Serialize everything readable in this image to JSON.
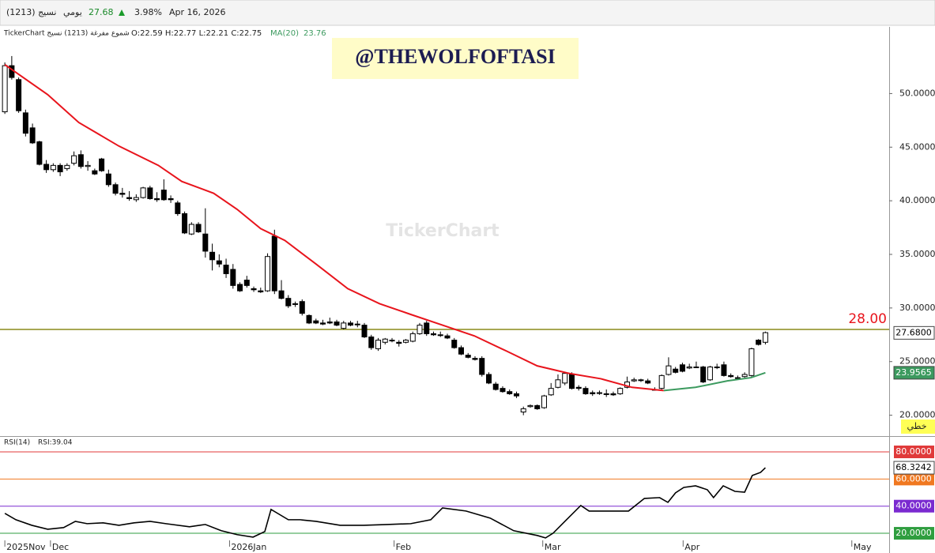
{
  "header": {
    "symbol": "نسيج (1213)",
    "period": "يومي",
    "price": 27.68,
    "change": "3.98%",
    "date": "Apr 16, 2026"
  },
  "chart_data": [
    {
      "type": "candlestick",
      "title": "TickerChart شموع مفرغة (1213) نسيج",
      "ohlc": "O:22.59 H:22.77 L:22.21 C:22.75",
      "ma_label": "MA(20)",
      "ma_value": "23.76",
      "watermark": "@THEWOLFOFTASI",
      "brand": "TickerChart",
      "line_button": "خطي",
      "xlim": [
        -0.7,
        127.9
      ],
      "ylim": [
        18.2,
        56.0
      ],
      "yticks": [
        {
          "value": 20,
          "label": "20.0000"
        },
        {
          "value": 25,
          "label": "25.0000"
        },
        {
          "value": 30,
          "label": "30.0000"
        },
        {
          "value": 35,
          "label": "35.0000"
        },
        {
          "value": 40,
          "label": "40.0000"
        },
        {
          "value": 45,
          "label": "45.0000"
        },
        {
          "value": 50,
          "label": "50.0000"
        }
      ],
      "up_color": "#ffffff",
      "down_color": "#000000",
      "candles": [
        [
          48.3,
          52.9,
          48.1,
          52.6
        ],
        [
          52.6,
          53.5,
          51.3,
          51.5
        ],
        [
          51.3,
          51.5,
          48.2,
          48.4
        ],
        [
          48.2,
          48.5,
          46.0,
          46.3
        ],
        [
          46.8,
          47.2,
          45.3,
          45.4
        ],
        [
          45.5,
          45.6,
          43.3,
          43.4
        ],
        [
          43.4,
          43.8,
          42.6,
          42.9
        ],
        [
          42.9,
          43.5,
          42.7,
          43.3
        ],
        [
          43.3,
          43.5,
          42.3,
          42.7
        ],
        [
          43.0,
          43.5,
          42.8,
          43.3
        ],
        [
          43.5,
          44.6,
          43.3,
          44.2
        ],
        [
          44.3,
          44.7,
          43.0,
          43.2
        ],
        [
          43.2,
          43.7,
          42.8,
          43.3
        ],
        [
          42.8,
          43.0,
          42.4,
          42.5
        ],
        [
          43.9,
          44.0,
          42.7,
          42.8
        ],
        [
          42.5,
          42.9,
          41.3,
          41.5
        ],
        [
          41.5,
          41.7,
          40.5,
          40.7
        ],
        [
          40.7,
          41.2,
          40.3,
          40.6
        ],
        [
          40.3,
          40.9,
          40.0,
          40.2
        ],
        [
          40.1,
          40.6,
          39.9,
          40.3
        ],
        [
          40.3,
          41.3,
          40.2,
          41.2
        ],
        [
          41.2,
          41.4,
          40.1,
          40.2
        ],
        [
          40.2,
          40.8,
          39.9,
          40.1
        ],
        [
          41.0,
          42.0,
          40.0,
          40.1
        ],
        [
          40.2,
          40.5,
          39.8,
          40.1
        ],
        [
          39.8,
          40.0,
          38.6,
          38.8
        ],
        [
          38.8,
          39.0,
          36.9,
          37.0
        ],
        [
          36.9,
          38.0,
          36.8,
          37.8
        ],
        [
          37.8,
          38.0,
          37.0,
          37.1
        ],
        [
          36.9,
          39.3,
          34.7,
          35.3
        ],
        [
          35.2,
          36.0,
          33.5,
          34.5
        ],
        [
          34.4,
          35.0,
          33.8,
          34.1
        ],
        [
          34.0,
          34.6,
          32.8,
          33.2
        ],
        [
          33.6,
          34.1,
          31.8,
          32.1
        ],
        [
          32.2,
          32.4,
          31.5,
          31.6
        ],
        [
          32.6,
          33.0,
          31.9,
          32.1
        ],
        [
          31.8,
          32.0,
          31.5,
          31.7
        ],
        [
          31.6,
          31.9,
          31.4,
          31.5
        ],
        [
          31.6,
          35.1,
          31.5,
          34.8
        ],
        [
          36.7,
          37.3,
          31.3,
          31.6
        ],
        [
          31.6,
          32.6,
          30.8,
          30.9
        ],
        [
          30.9,
          31.2,
          30.0,
          30.2
        ],
        [
          30.4,
          30.6,
          30.1,
          30.4
        ],
        [
          30.6,
          30.8,
          29.3,
          29.5
        ],
        [
          29.3,
          29.4,
          28.5,
          28.6
        ],
        [
          28.8,
          29.0,
          28.5,
          28.6
        ],
        [
          28.6,
          28.9,
          28.4,
          28.5
        ],
        [
          28.7,
          29.1,
          28.5,
          28.6
        ],
        [
          28.7,
          28.9,
          28.3,
          28.4
        ],
        [
          28.1,
          28.8,
          28.0,
          28.6
        ],
        [
          28.6,
          28.8,
          28.3,
          28.4
        ],
        [
          28.5,
          28.8,
          28.2,
          28.5
        ],
        [
          28.4,
          28.6,
          27.2,
          27.3
        ],
        [
          27.3,
          27.5,
          26.1,
          26.3
        ],
        [
          26.2,
          27.2,
          26.0,
          27.0
        ],
        [
          26.8,
          27.2,
          26.6,
          27.1
        ],
        [
          27.0,
          27.2,
          26.8,
          27.0
        ],
        [
          26.8,
          27.0,
          26.4,
          26.7
        ],
        [
          26.8,
          27.1,
          26.7,
          27.0
        ],
        [
          26.9,
          27.8,
          26.8,
          27.6
        ],
        [
          27.6,
          28.6,
          27.5,
          28.4
        ],
        [
          28.6,
          28.8,
          27.4,
          27.6
        ],
        [
          27.6,
          27.8,
          27.4,
          27.5
        ],
        [
          27.5,
          27.8,
          27.3,
          27.5
        ],
        [
          27.4,
          27.6,
          27.1,
          27.2
        ],
        [
          27.0,
          27.2,
          26.2,
          26.3
        ],
        [
          26.3,
          26.5,
          25.6,
          25.7
        ],
        [
          25.6,
          25.8,
          25.3,
          25.4
        ],
        [
          25.3,
          25.5,
          25.1,
          25.2
        ],
        [
          25.3,
          25.5,
          23.6,
          23.8
        ],
        [
          23.8,
          24.0,
          22.9,
          23.0
        ],
        [
          22.9,
          23.1,
          22.3,
          22.4
        ],
        [
          22.5,
          22.7,
          22.1,
          22.2
        ],
        [
          22.2,
          22.4,
          21.9,
          22.0
        ],
        [
          22.0,
          22.2,
          21.6,
          21.8
        ],
        [
          20.3,
          20.8,
          20.0,
          20.6
        ],
        [
          20.8,
          21.0,
          20.7,
          20.9
        ],
        [
          20.9,
          21.0,
          20.5,
          20.6
        ],
        [
          20.7,
          21.9,
          20.6,
          21.8
        ],
        [
          21.9,
          23.0,
          21.8,
          22.5
        ],
        [
          22.6,
          23.8,
          22.5,
          23.3
        ],
        [
          23.0,
          24.0,
          22.8,
          23.9
        ],
        [
          23.8,
          24.0,
          22.4,
          22.5
        ],
        [
          22.6,
          22.8,
          22.3,
          22.5
        ],
        [
          22.5,
          22.7,
          21.9,
          22.0
        ],
        [
          22.1,
          22.3,
          21.8,
          22.0
        ],
        [
          22.1,
          22.3,
          21.9,
          22.1
        ],
        [
          22.0,
          22.4,
          21.7,
          22.0
        ],
        [
          22.0,
          22.2,
          21.8,
          21.9
        ],
        [
          22.0,
          22.6,
          21.9,
          22.5
        ],
        [
          22.6,
          23.6,
          22.5,
          23.1
        ],
        [
          23.2,
          23.5,
          23.1,
          23.3
        ],
        [
          23.3,
          23.4,
          23.1,
          23.3
        ],
        [
          23.2,
          23.4,
          22.9,
          23.0
        ],
        [
          22.4,
          22.6,
          22.3,
          22.4
        ],
        [
          22.5,
          23.8,
          22.4,
          23.7
        ],
        [
          23.8,
          25.4,
          23.7,
          24.6
        ],
        [
          24.3,
          24.5,
          23.9,
          24.0
        ],
        [
          24.7,
          24.9,
          24.0,
          24.1
        ],
        [
          24.4,
          24.8,
          24.3,
          24.5
        ],
        [
          24.5,
          25.0,
          24.4,
          24.5
        ],
        [
          24.5,
          24.6,
          23.0,
          23.1
        ],
        [
          23.3,
          24.6,
          23.2,
          24.5
        ],
        [
          24.5,
          24.8,
          24.3,
          24.5
        ],
        [
          24.7,
          25.0,
          23.6,
          23.7
        ],
        [
          23.7,
          23.9,
          23.5,
          23.6
        ],
        [
          23.5,
          23.7,
          23.4,
          23.5
        ],
        [
          23.6,
          24.0,
          23.5,
          23.8
        ],
        [
          23.7,
          26.3,
          23.6,
          26.2
        ],
        [
          27.0,
          27.1,
          26.5,
          26.6
        ],
        [
          26.8,
          27.8,
          26.6,
          27.7
        ]
      ],
      "ma": {
        "x": [
          0,
          6.2,
          10.7,
          16.5,
          22.2,
          25.6,
          30.2,
          33.6,
          37.0,
          40.5,
          45.0,
          49.6,
          54.2,
          58.7,
          63.3,
          67.9,
          72.5,
          77.0,
          81.6,
          86.2,
          90.7,
          95.3,
          99.9,
          104.5,
          107.9,
          110
        ],
        "values": [
          52.7,
          49.9,
          47.3,
          45.1,
          43.3,
          41.8,
          40.7,
          39.2,
          37.4,
          36.3,
          34.1,
          31.8,
          30.4,
          29.4,
          28.4,
          27.4,
          26.0,
          24.6,
          23.9,
          23.4,
          22.6,
          22.3,
          22.6,
          23.2,
          23.5,
          23.96
        ],
        "color": "#e8141c",
        "rising_color": "#3c9a5f"
      },
      "hline": {
        "value": 28,
        "label": "28.00",
        "color": "#8a8a1a",
        "label_color": "#e8141c"
      },
      "last_price": {
        "value": 27.68,
        "label": "27.6800"
      },
      "ma_last": {
        "value": 23.9565,
        "label": "23.9565"
      }
    },
    {
      "type": "line",
      "title": "RSI(14)",
      "value_text": "RSI:39.04",
      "xlim": [
        -0.7,
        127.9
      ],
      "ylim": [
        11.3,
        89.9
      ],
      "xticks": [
        {
          "value": 0,
          "label": "2025Nov"
        },
        {
          "value": 6.6,
          "label": "Dec"
        },
        {
          "value": 32.5,
          "label": "2026Jan"
        },
        {
          "value": 56.3,
          "label": "Feb"
        },
        {
          "value": 77.8,
          "label": "Mar"
        },
        {
          "value": 98.1,
          "label": "Apr"
        },
        {
          "value": 122.5,
          "label": "May"
        }
      ],
      "levels": [
        {
          "value": 80,
          "label": "80.0000",
          "color": "#e03a3a"
        },
        {
          "value": 60,
          "label": "60.0000",
          "color": "#f07820"
        },
        {
          "value": 40,
          "label": "40.0000",
          "color": "#7a2ad0"
        },
        {
          "value": 20,
          "label": "20.0000",
          "color": "#2f9e3f"
        }
      ],
      "series": [
        {
          "color": "#000000",
          "x": [
            0,
            1.6,
            3.9,
            6.2,
            8.5,
            10.2,
            11.9,
            14.2,
            16.5,
            18.7,
            21.0,
            23.3,
            26.7,
            29.0,
            31.3,
            33.6,
            35.9,
            37.6,
            38.5,
            41.0,
            42.7,
            45.0,
            48.5,
            51.9,
            55.3,
            58.7,
            61.6,
            63.3,
            66.7,
            70.2,
            73.6,
            77.0,
            78.2,
            79.3,
            81.0,
            83.3,
            84.5,
            87.3,
            90.2,
            92.5,
            94.7,
            95.9,
            97.0,
            98.2,
            99.9,
            101.6,
            102.5,
            103.9,
            105.6,
            107.0,
            108.1,
            109.3,
            110
          ],
          "values": [
            34.7,
            30.0,
            25.9,
            23.0,
            24.2,
            28.8,
            27.1,
            27.7,
            25.9,
            27.7,
            28.8,
            27.1,
            24.8,
            26.5,
            21.9,
            19.0,
            17.2,
            21.3,
            37.6,
            30.0,
            30.0,
            28.8,
            25.9,
            25.9,
            26.5,
            27.1,
            30.0,
            38.7,
            36.4,
            31.2,
            21.9,
            18.4,
            16.6,
            20.1,
            28.8,
            40.5,
            36.4,
            36.4,
            36.4,
            45.7,
            46.3,
            42.8,
            49.8,
            53.8,
            55.0,
            52.1,
            46.3,
            55.0,
            50.9,
            50.3,
            62.6,
            64.9,
            68.3
          ]
        }
      ],
      "last": {
        "value": 68.3242,
        "label": "68.3242"
      }
    }
  ]
}
